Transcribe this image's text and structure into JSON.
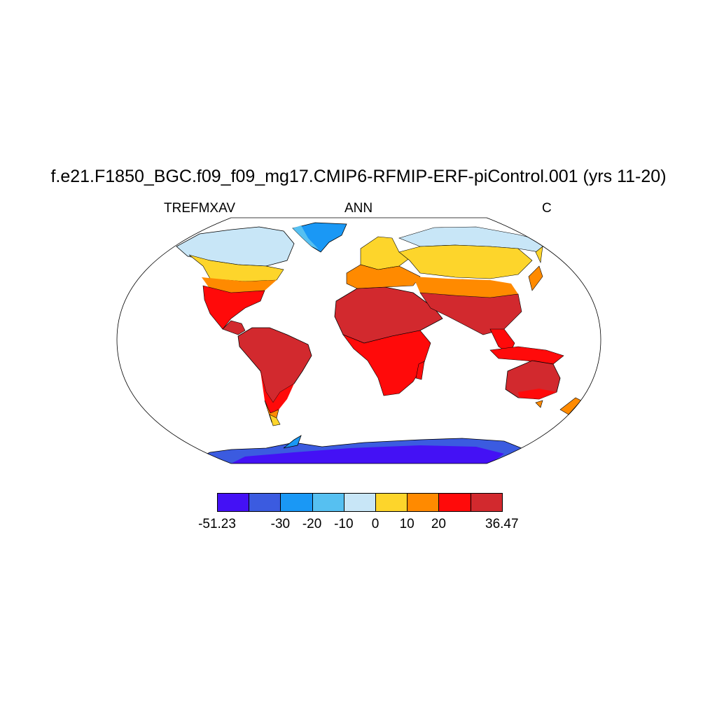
{
  "title": "f.e21.F1850_BGC.f09_f09_mg17.CMIP6-RFMIP-ERF-piControl.001 (yrs 11-20)",
  "variable": "TREFMXAV",
  "season": "ANN",
  "units": "C",
  "colorbar": {
    "colors": [
      "#4411f5",
      "#3b5be0",
      "#1a98f5",
      "#56c0f1",
      "#c8e6f7",
      "#fdd52b",
      "#ff8a00",
      "#ff0a0a",
      "#d2292e"
    ],
    "labels": [
      "-51.23",
      "-30",
      "-20",
      "-10",
      "0",
      "10",
      "20",
      "36.47"
    ]
  }
}
